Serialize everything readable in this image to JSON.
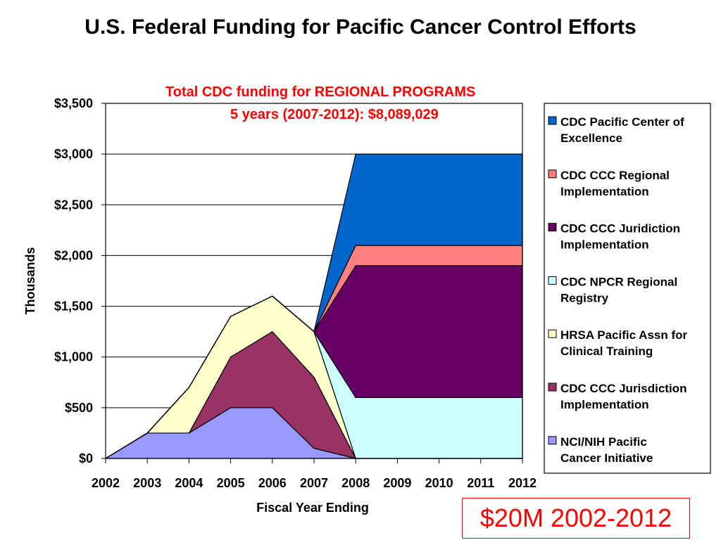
{
  "title": "U.S. Federal Funding for Pacific Cancer Control Efforts",
  "subtitle_line1": "Total CDC funding for REGIONAL PROGRAMS",
  "subtitle_line2": "5 years (2007-2012): $8,089,029",
  "callout": "$20M 2002-2012",
  "colors": {
    "nci": "#9999ff",
    "ccc_jurisdiction": "#993366",
    "hrsa": "#ffffcc",
    "npcr": "#ccffff",
    "ccc_juridiction": "#660066",
    "ccc_regional": "#ff8080",
    "excellence": "#0066cc",
    "subtitle": "#ff0000"
  },
  "chart_data": {
    "type": "area",
    "stacked": true,
    "xlabel": "Fiscal Year Ending",
    "ylabel": "Thousands",
    "x": [
      "2002",
      "2003",
      "2004",
      "2005",
      "2006",
      "2007",
      "2008",
      "2009",
      "2010",
      "2011",
      "2012"
    ],
    "ylim": [
      0,
      3500
    ],
    "yticks": [
      "$0",
      "$500",
      "$1,000",
      "$1,500",
      "$2,000",
      "$2,500",
      "$3,000",
      "$3,500"
    ],
    "grid": true,
    "legend_position": "right",
    "series": [
      {
        "name": "NCI/NIH Pacific Cancer Initiative",
        "color_key": "nci",
        "values": [
          0,
          250,
          250,
          500,
          500,
          100,
          0,
          0,
          0,
          0,
          0
        ]
      },
      {
        "name": "CDC CCC Jurisdiction Implementation",
        "color_key": "ccc_jurisdiction",
        "values": [
          0,
          0,
          0,
          500,
          750,
          700,
          0,
          0,
          0,
          0,
          0
        ]
      },
      {
        "name": "HRSA Pacific Assn for Clinical Training",
        "color_key": "hrsa",
        "values": [
          0,
          0,
          450,
          400,
          350,
          450,
          0,
          0,
          0,
          0,
          0
        ]
      },
      {
        "name": "CDC NPCR Regional Registry",
        "color_key": "npcr",
        "values": [
          0,
          0,
          0,
          0,
          0,
          0,
          600,
          600,
          600,
          600,
          600
        ]
      },
      {
        "name": "CDC CCC Juridiction Implementation",
        "color_key": "ccc_juridiction",
        "values": [
          0,
          0,
          0,
          0,
          0,
          0,
          1300,
          1300,
          1300,
          1300,
          1300
        ]
      },
      {
        "name": "CDC CCC Regional Implementation",
        "color_key": "ccc_regional",
        "values": [
          0,
          0,
          0,
          0,
          0,
          0,
          200,
          200,
          200,
          200,
          200
        ]
      },
      {
        "name": "CDC Pacific Center of Excellence",
        "color_key": "excellence",
        "values": [
          0,
          0,
          0,
          0,
          0,
          0,
          900,
          900,
          900,
          900,
          900
        ]
      }
    ],
    "legend_order": [
      {
        "label_line1": "CDC Pacific Center of",
        "label_line2": "Excellence",
        "color_key": "excellence"
      },
      {
        "label_line1": "CDC CCC Regional",
        "label_line2": "Implementation",
        "color_key": "ccc_regional"
      },
      {
        "label_line1": "CDC CCC Juridiction",
        "label_line2": "Implementation",
        "color_key": "ccc_juridiction"
      },
      {
        "label_line1": "CDC NPCR Regional",
        "label_line2": "Registry",
        "color_key": "npcr"
      },
      {
        "label_line1": "HRSA Pacific Assn for",
        "label_line2": "Clinical Training",
        "color_key": "hrsa"
      },
      {
        "label_line1": "CDC CCC Jurisdiction",
        "label_line2": "Implementation",
        "color_key": "ccc_jurisdiction"
      },
      {
        "label_line1": "NCI/NIH Pacific",
        "label_line2": "Cancer Initiative",
        "color_key": "nci"
      }
    ]
  }
}
